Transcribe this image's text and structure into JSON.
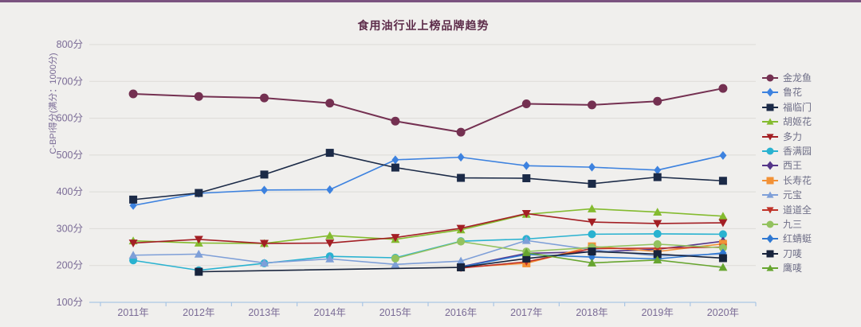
{
  "page": {
    "top_accent_color": "#7b5380",
    "background_color": "#f0efed"
  },
  "chart_data": {
    "type": "line",
    "title": "食用油行业上榜品牌趋势",
    "ylabel": "C-BPI得分(满分：1000分)",
    "xlabel": "",
    "ylim": [
      100,
      800
    ],
    "y_tick_step": 100,
    "y_tick_suffix": "分",
    "y_ticks": [
      "100分",
      "200分",
      "300分",
      "400分",
      "500分",
      "600分",
      "700分",
      "800分"
    ],
    "grid": true,
    "legend_position": "right",
    "axis_text_color": "#7a6b96",
    "axis_line_color": "#a9c6e4",
    "grid_color": "#dddbd7",
    "x_categories": [
      "2011年",
      "2012年",
      "2013年",
      "2014年",
      "2015年",
      "2016年",
      "2017年",
      "2018年",
      "2019年",
      "2020年"
    ],
    "series": [
      {
        "name": "金龙鱼",
        "color": "#743051",
        "shape": "circle",
        "line_width": 2,
        "marker_size": 11,
        "values": [
          666,
          659,
          655,
          641,
          592,
          562,
          639,
          636,
          646,
          681
        ]
      },
      {
        "name": "鲁花",
        "color": "#3d82df",
        "shape": "diamond",
        "line_width": 1.6,
        "marker_size": 9,
        "values": [
          363,
          396,
          405,
          406,
          487,
          494,
          471,
          467,
          459,
          499
        ]
      },
      {
        "name": "福临门",
        "color": "#1b2a47",
        "shape": "square",
        "line_width": 1.6,
        "marker_size": 10,
        "values": [
          379,
          397,
          447,
          506,
          466,
          438,
          437,
          422,
          440,
          430
        ]
      },
      {
        "name": "胡姬花",
        "color": "#84bb2f",
        "shape": "triangle",
        "line_width": 1.6,
        "marker_size": 11,
        "values": [
          267,
          261,
          260,
          281,
          271,
          297,
          339,
          354,
          345,
          334
        ]
      },
      {
        "name": "多力",
        "color": "#a31f24",
        "shape": "triangle-down",
        "line_width": 1.6,
        "marker_size": 11,
        "values": [
          261,
          271,
          260,
          261,
          276,
          301,
          341,
          318,
          314,
          316
        ]
      },
      {
        "name": "香满园",
        "color": "#29b2d0",
        "shape": "circle",
        "line_width": 1.6,
        "marker_size": 10,
        "values": [
          214,
          187,
          206,
          225,
          221,
          266,
          272,
          285,
          286,
          285
        ]
      },
      {
        "name": "西王",
        "color": "#543589",
        "shape": "diamond",
        "line_width": 1.6,
        "marker_size": 9,
        "values": [
          null,
          null,
          null,
          null,
          null,
          197,
          233,
          237,
          244,
          266
        ]
      },
      {
        "name": "长寿花",
        "color": "#f29136",
        "shape": "square",
        "line_width": 1.6,
        "marker_size": 10,
        "values": [
          null,
          null,
          null,
          null,
          null,
          195,
          206,
          252,
          238,
          259
        ]
      },
      {
        "name": "元宝",
        "color": "#7e9fd8",
        "shape": "triangle",
        "line_width": 1.6,
        "marker_size": 11,
        "values": [
          228,
          231,
          207,
          218,
          203,
          212,
          268,
          243,
          226,
          231
        ]
      },
      {
        "name": "道道全",
        "color": "#c03228",
        "shape": "triangle-down",
        "line_width": 1.6,
        "marker_size": 10,
        "values": [
          null,
          null,
          null,
          null,
          null,
          193,
          210,
          246,
          247,
          250
        ]
      },
      {
        "name": "九三",
        "color": "#93c25e",
        "shape": "circle",
        "line_width": 1.6,
        "marker_size": 10,
        "values": [
          null,
          null,
          null,
          null,
          219,
          265,
          238,
          249,
          258,
          248
        ]
      },
      {
        "name": "红蜻蜓",
        "color": "#2f78d2",
        "shape": "diamond",
        "line_width": 1.6,
        "marker_size": 9,
        "values": [
          null,
          null,
          null,
          null,
          null,
          196,
          230,
          223,
          218,
          234
        ]
      },
      {
        "name": "刀唛",
        "color": "#17233c",
        "shape": "square",
        "line_width": 1.6,
        "marker_size": 10,
        "values": [
          null,
          183,
          null,
          null,
          null,
          195,
          219,
          238,
          231,
          220
        ]
      },
      {
        "name": "鹰唛",
        "color": "#67a52f",
        "shape": "triangle",
        "line_width": 1.6,
        "marker_size": 11,
        "values": [
          null,
          null,
          null,
          null,
          null,
          null,
          235,
          207,
          215,
          195
        ]
      }
    ]
  }
}
